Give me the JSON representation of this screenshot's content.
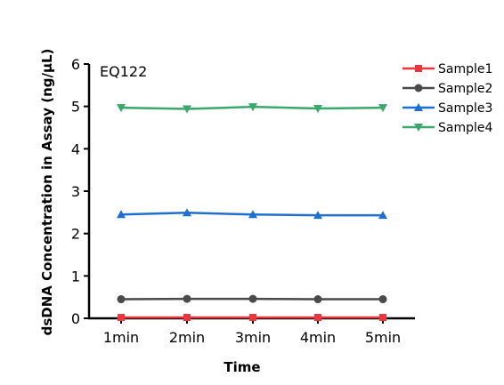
{
  "chart_data": {
    "type": "line",
    "annotation": "EQ122",
    "xlabel": "Time",
    "ylabel": "dsDNA Concentration in Assay (ng/µL)",
    "categories": [
      "1min",
      "2min",
      "3min",
      "4min",
      "5min"
    ],
    "ylim": [
      0,
      6
    ],
    "yticks": [
      "0",
      "1",
      "2",
      "3",
      "4",
      "5",
      "6"
    ],
    "grid": false,
    "legend_position": "top-right",
    "series": [
      {
        "name": "Sample1",
        "color": "#e8383d",
        "marker": "square",
        "values": [
          0.02,
          0.02,
          0.02,
          0.02,
          0.02
        ]
      },
      {
        "name": "Sample2",
        "color": "#4a4a4a",
        "marker": "circle",
        "values": [
          0.45,
          0.46,
          0.46,
          0.45,
          0.45
        ]
      },
      {
        "name": "Sample3",
        "color": "#1f6fd1",
        "marker": "triangle-up",
        "values": [
          2.45,
          2.49,
          2.45,
          2.43,
          2.43
        ]
      },
      {
        "name": "Sample4",
        "color": "#3aa86b",
        "marker": "triangle-down",
        "values": [
          4.97,
          4.94,
          4.99,
          4.95,
          4.97
        ]
      }
    ]
  }
}
